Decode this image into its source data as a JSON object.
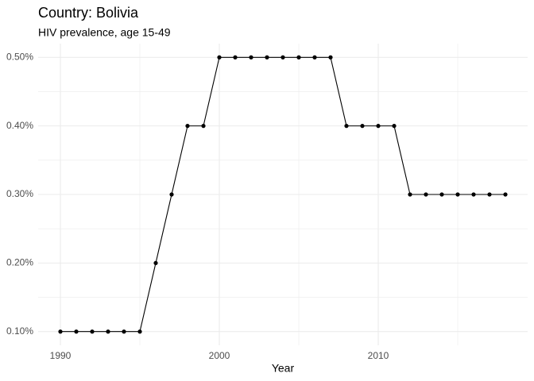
{
  "chart_data": {
    "type": "line",
    "title": "Country: Bolivia",
    "subtitle": "HIV prevalence, age 15-49",
    "x_label": "Year",
    "x": [
      1990,
      1991,
      1992,
      1993,
      1994,
      1995,
      1996,
      1997,
      1998,
      1999,
      2000,
      2001,
      2002,
      2003,
      2004,
      2005,
      2006,
      2007,
      2008,
      2009,
      2010,
      2011,
      2012,
      2013,
      2014,
      2015,
      2016,
      2017,
      2018
    ],
    "series": [
      {
        "color": "#000000",
        "values": [
          0.1,
          0.1,
          0.1,
          0.1,
          0.1,
          0.1,
          0.2,
          0.3,
          0.4,
          0.4,
          0.5,
          0.5,
          0.5,
          0.5,
          0.5,
          0.5,
          0.5,
          0.5,
          0.4,
          0.4,
          0.4,
          0.4,
          0.3,
          0.3,
          0.3,
          0.3,
          0.3,
          0.3,
          0.3
        ]
      }
    ],
    "xlim": [
      1988.6,
      2019.4
    ],
    "xticks": [
      1990,
      2000,
      2010
    ],
    "minor_xticks": [
      1995,
      2005,
      2015
    ],
    "ylim": [
      0.08,
      0.52
    ],
    "yticks": [
      {
        "value": 0.1,
        "label": "0.10%"
      },
      {
        "value": 0.2,
        "label": "0.20%"
      },
      {
        "value": 0.3,
        "label": "0.30%"
      },
      {
        "value": 0.4,
        "label": "0.40%"
      },
      {
        "value": 0.5,
        "label": "0.50%"
      }
    ],
    "minor_yticks": [
      0.15,
      0.25,
      0.35,
      0.45
    ],
    "grid": true
  }
}
